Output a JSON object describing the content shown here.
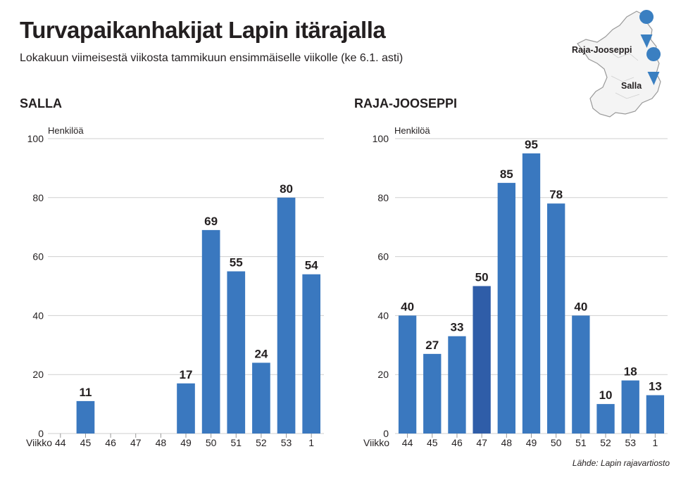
{
  "header": {
    "title": "Turvapaikanhakijat Lapin itärajalla",
    "subtitle": "Lokakuun viimeisestä viikosta tammikuun ensimmäiselle viikolle (ke 6.1. asti)"
  },
  "source": "Lähde: Lapin rajavartiosto",
  "map": {
    "labels": [
      "Raja-Jooseppi",
      "Salla"
    ],
    "marker_color": "#3a7fc1"
  },
  "colors": {
    "bar": "#3a78bf",
    "bar_highlight": "#2f5da8",
    "grid": "#cfcfcf"
  },
  "chart_data": [
    {
      "type": "bar",
      "title": "SALLA",
      "ylabel": "Henkilöä",
      "xlabel": "Viikko",
      "ylim": [
        0,
        100
      ],
      "yticks": [
        0,
        20,
        40,
        60,
        80,
        100
      ],
      "categories": [
        "44",
        "45",
        "46",
        "47",
        "48",
        "49",
        "50",
        "51",
        "52",
        "53",
        "1"
      ],
      "values": [
        0,
        11,
        0,
        0,
        0,
        17,
        69,
        55,
        24,
        80,
        54
      ],
      "value_labels": [
        "",
        "11",
        "",
        "",
        "",
        "17",
        "69",
        "55",
        "24",
        "80",
        "54"
      ]
    },
    {
      "type": "bar",
      "title": "RAJA-JOOSEPPI",
      "ylabel": "Henkilöä",
      "xlabel": "Viikko",
      "ylim": [
        0,
        100
      ],
      "yticks": [
        0,
        20,
        40,
        60,
        80,
        100
      ],
      "categories": [
        "44",
        "45",
        "46",
        "47",
        "48",
        "49",
        "50",
        "51",
        "52",
        "53",
        "1"
      ],
      "values": [
        40,
        27,
        33,
        50,
        85,
        95,
        78,
        40,
        10,
        18,
        13
      ],
      "value_labels": [
        "40",
        "27",
        "33",
        "50",
        "85",
        "95",
        "78",
        "40",
        "10",
        "18",
        "13"
      ],
      "highlight_index": 3
    }
  ]
}
